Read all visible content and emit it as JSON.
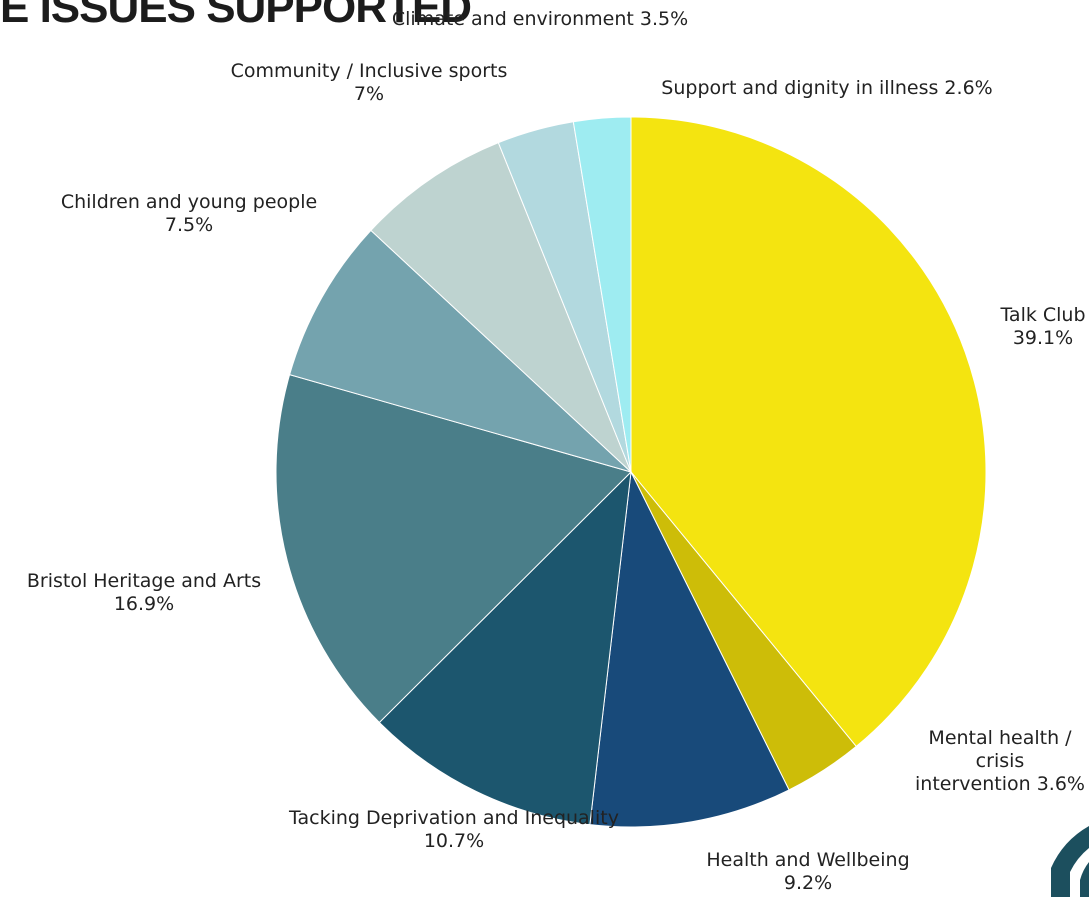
{
  "chart_data": {
    "type": "pie",
    "title": "E ISSUES SUPPORTED",
    "slices": [
      {
        "name": "Talk Club",
        "label_lines": [
          "Talk Club",
          "39.1%"
        ],
        "value": 39.1,
        "color": "#f4e410"
      },
      {
        "name": "Mental health / crisis intervention",
        "label_lines": [
          "Mental health /",
          "crisis",
          "intervention 3.6%"
        ],
        "value": 3.6,
        "color": "#cdbd08"
      },
      {
        "name": "Health and Wellbeing",
        "label_lines": [
          "Health and Wellbeing",
          "9.2%"
        ],
        "value": 9.2,
        "color": "#184a7a"
      },
      {
        "name": "Tacking Deprivation and Inequality",
        "label_lines": [
          "Tacking Deprivation and Inequality",
          "10.7%"
        ],
        "value": 10.7,
        "color": "#1c566e"
      },
      {
        "name": "Bristol Heritage and Arts",
        "label_lines": [
          "Bristol Heritage and Arts",
          "16.9%"
        ],
        "value": 16.9,
        "color": "#4a7e89"
      },
      {
        "name": "Children and young people",
        "label_lines": [
          "Children and young people",
          "7.5%"
        ],
        "value": 7.5,
        "color": "#74a3ae"
      },
      {
        "name": "Community / Inclusive sports",
        "label_lines": [
          "Community / Inclusive sports",
          "7%"
        ],
        "value": 7.0,
        "color": "#bed3d0"
      },
      {
        "name": "Climate and environment",
        "label_lines": [
          "Climate and environment 3.5%"
        ],
        "value": 3.5,
        "color": "#b2d9df"
      },
      {
        "name": "Support and dignity in illness",
        "label_lines": [
          "Support and dignity in illness 2.6%"
        ],
        "value": 2.6,
        "color": "#9eecf1"
      }
    ],
    "start_angle_deg": 0,
    "direction": "clockwise",
    "legend": "none",
    "labels": "outside"
  },
  "logo": {
    "colors": [
      "#1c4f5e"
    ]
  }
}
